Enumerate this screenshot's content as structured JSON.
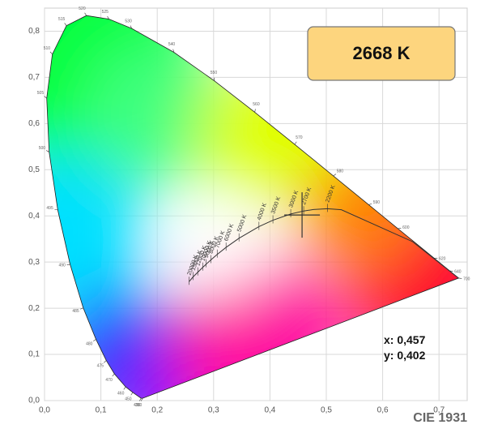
{
  "chart_data": {
    "type": "chromaticity",
    "title": "CIE 1931",
    "xlim": [
      0,
      0.75
    ],
    "ylim": [
      0,
      0.85
    ],
    "grid": true,
    "xticks": [
      {
        "value": 0,
        "label": "0,0"
      },
      {
        "value": 0.1,
        "label": "0,1"
      },
      {
        "value": 0.2,
        "label": "0,2"
      },
      {
        "value": 0.3,
        "label": "0,3"
      },
      {
        "value": 0.4,
        "label": "0,4"
      },
      {
        "value": 0.5,
        "label": "0,5"
      },
      {
        "value": 0.6,
        "label": "0,6"
      },
      {
        "value": 0.7,
        "label": "0,7"
      }
    ],
    "yticks": [
      {
        "value": 0,
        "label": "0,0"
      },
      {
        "value": 0.1,
        "label": "0,1"
      },
      {
        "value": 0.2,
        "label": "0,2"
      },
      {
        "value": 0.3,
        "label": "0,3"
      },
      {
        "value": 0.4,
        "label": "0,4"
      },
      {
        "value": 0.5,
        "label": "0,5"
      },
      {
        "value": 0.6,
        "label": "0,6"
      },
      {
        "value": 0.7,
        "label": "0,7"
      },
      {
        "value": 0.8,
        "label": "0,8"
      }
    ],
    "spectral_locus": {
      "wavelengths": [
        380,
        420,
        450,
        460,
        470,
        475,
        480,
        485,
        490,
        495,
        500,
        505,
        510,
        515,
        520,
        525,
        530,
        540,
        550,
        560,
        570,
        580,
        590,
        600,
        620,
        640,
        700
      ],
      "x": [
        0.1741,
        0.1714,
        0.1566,
        0.144,
        0.1241,
        0.1096,
        0.0913,
        0.0687,
        0.0454,
        0.0235,
        0.0082,
        0.0039,
        0.0139,
        0.0389,
        0.0743,
        0.1142,
        0.1547,
        0.2296,
        0.3016,
        0.3731,
        0.4441,
        0.5125,
        0.5752,
        0.627,
        0.6915,
        0.719,
        0.7347
      ],
      "y": [
        0.005,
        0.0051,
        0.0177,
        0.0297,
        0.0578,
        0.0868,
        0.1327,
        0.2007,
        0.295,
        0.4127,
        0.5384,
        0.6548,
        0.7502,
        0.812,
        0.8338,
        0.8262,
        0.8059,
        0.7543,
        0.6923,
        0.6245,
        0.5547,
        0.4866,
        0.4242,
        0.3725,
        0.3083,
        0.2809,
        0.2653
      ]
    },
    "planckian_locus": {
      "labels": [
        null,
        null,
        null,
        "2200 K",
        null,
        "2700 K",
        "3000 K",
        "3500 K",
        "4000 K",
        "5000 K",
        "6000 K",
        "7000 K",
        "8000 K",
        "9000 K",
        "10000 K",
        "12000 K",
        "15000 K",
        "20000 K"
      ],
      "x": [
        0.7347,
        0.6528,
        0.5267,
        0.502,
        0.477,
        0.4599,
        0.4369,
        0.4053,
        0.3805,
        0.3451,
        0.3221,
        0.3064,
        0.2952,
        0.2869,
        0.2807,
        0.2719,
        0.2637,
        0.2565
      ],
      "y": [
        0.2653,
        0.3444,
        0.4133,
        0.4155,
        0.4137,
        0.4106,
        0.4041,
        0.3907,
        0.3768,
        0.3516,
        0.3318,
        0.3166,
        0.3048,
        0.2956,
        0.2884,
        0.2779,
        0.268,
        0.2577
      ]
    },
    "point": {
      "x": 0.457,
      "y": 0.402,
      "cct": 2668,
      "cct_label": "2668 K",
      "x_label": "x: 0,457",
      "y_label": "y: 0,402"
    }
  }
}
